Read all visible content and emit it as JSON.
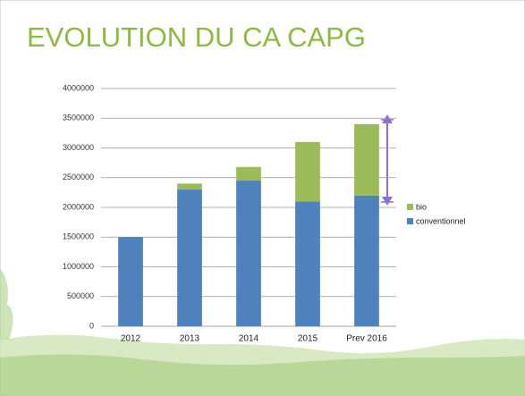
{
  "chart_data": {
    "type": "stacked-bar",
    "title": "EVOLUTION DU CA CAPG",
    "categories": [
      "2012",
      "2013",
      "2014",
      "2015",
      "Prev 2016"
    ],
    "series": [
      {
        "name": "conventionnel",
        "color": "#4f81bd",
        "values": [
          1500000,
          2300000,
          2450000,
          2100000,
          2200000
        ]
      },
      {
        "name": "bio",
        "color": "#9bbb59",
        "values": [
          0,
          100000,
          230000,
          1000000,
          1200000
        ]
      }
    ],
    "ylim": [
      0,
      4000000
    ],
    "yticks": [
      0,
      500000,
      1000000,
      1500000,
      2000000,
      2500000,
      3000000,
      3500000,
      4000000
    ],
    "grid": true,
    "legend": "right"
  }
}
